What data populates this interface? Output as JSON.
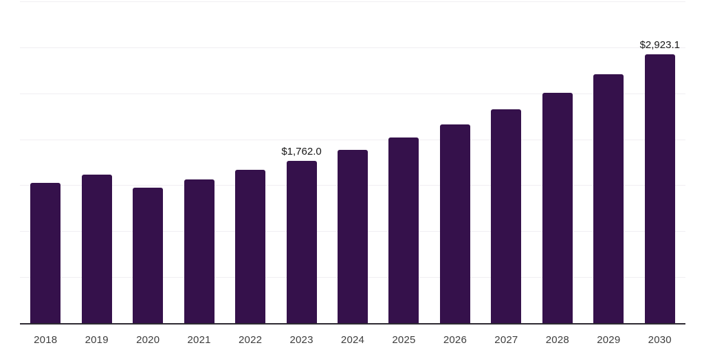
{
  "chart_data": {
    "type": "bar",
    "title": "",
    "categories": [
      "2018",
      "2019",
      "2020",
      "2021",
      "2022",
      "2023",
      "2024",
      "2025",
      "2026",
      "2027",
      "2028",
      "2029",
      "2030"
    ],
    "series": [
      {
        "name": "values",
        "values": [
          1528,
          1615,
          1471,
          1561,
          1665,
          1762.0,
          1882,
          2019,
          2161,
          2323,
          2505,
          2709,
          2923.1
        ]
      }
    ],
    "value_labels": [
      {
        "index": 5,
        "text": "$1,762.0"
      },
      {
        "index": 12,
        "text": "$2,923.1"
      }
    ],
    "xlabel": "",
    "ylabel": "",
    "ylim": [
      0,
      3500
    ],
    "gridline_interval": 500,
    "grid": "horizontal",
    "y_axis_tick_labels_visible": false,
    "legend_position": "none"
  },
  "colors": {
    "bar": "#35114B",
    "gridline": "#f0eef2",
    "axis": "#2d2a32",
    "tick_text": "#3d3d3d",
    "value_label_text": "#161616",
    "background": "#ffffff"
  }
}
